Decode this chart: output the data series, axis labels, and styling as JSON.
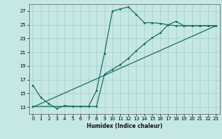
{
  "xlabel": "Humidex (Indice chaleur)",
  "bg_color": "#c5e8e5",
  "grid_color": "#a8d0cc",
  "line_color": "#1a6b60",
  "xlim": [
    -0.5,
    23.5
  ],
  "ylim": [
    12.0,
    28.0
  ],
  "yticks": [
    13,
    15,
    17,
    19,
    21,
    23,
    25,
    27
  ],
  "xticks": [
    0,
    1,
    2,
    3,
    4,
    5,
    6,
    7,
    8,
    9,
    10,
    11,
    12,
    13,
    14,
    15,
    16,
    17,
    18,
    19,
    20,
    21,
    22,
    23
  ],
  "line1_x": [
    0,
    1,
    2,
    3,
    4,
    5,
    6,
    7,
    8,
    9,
    10,
    11,
    12,
    13,
    14,
    15,
    16,
    17,
    18,
    19,
    20,
    21,
    22,
    23
  ],
  "line1_y": [
    16.2,
    14.4,
    13.5,
    12.8,
    13.2,
    13.1,
    13.1,
    13.1,
    15.4,
    20.8,
    27.0,
    27.3,
    27.6,
    26.5,
    25.3,
    25.3,
    25.2,
    25.0,
    24.85,
    24.85,
    24.85,
    24.85,
    24.85,
    24.85
  ],
  "line2_x": [
    0,
    8,
    9,
    10,
    11,
    12,
    13,
    14,
    15,
    16,
    17,
    18,
    19,
    20,
    21,
    22,
    23
  ],
  "line2_y": [
    13.1,
    13.1,
    17.8,
    18.5,
    19.2,
    20.1,
    21.2,
    22.2,
    23.1,
    23.8,
    25.0,
    25.5,
    24.85,
    24.85,
    24.85,
    24.85,
    24.85
  ],
  "line3_x": [
    0,
    23
  ],
  "line3_y": [
    13.0,
    24.85
  ],
  "marker_size": 1.8,
  "line_width": 0.9
}
